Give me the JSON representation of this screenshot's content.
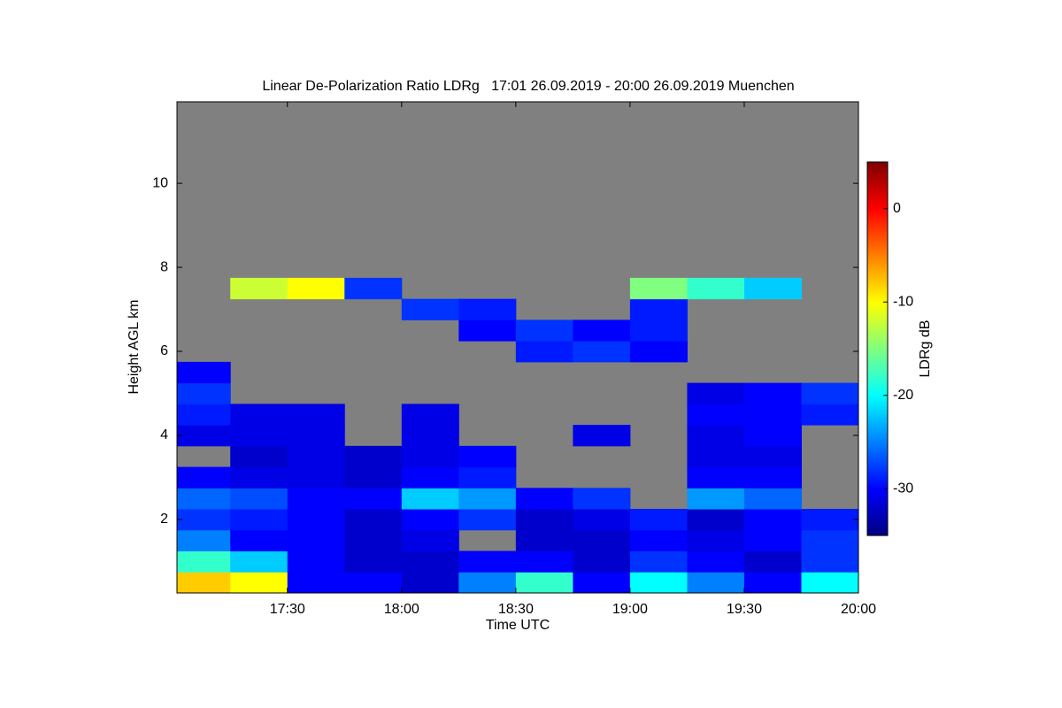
{
  "chart_data": {
    "type": "heatmap",
    "title": "Linear De-Polarization Ratio LDRg   17:01 26.09.2019 - 20:00 26.09.2019 Muenchen",
    "xlabel": "Time UTC",
    "ylabel": "Height AGL km",
    "colorbar_label": "LDRg dB",
    "xlim": [
      17.0167,
      20.0
    ],
    "xticks": [
      {
        "value": 17.5,
        "label": "17:30"
      },
      {
        "value": 18.0,
        "label": "18:00"
      },
      {
        "value": 18.5,
        "label": "18:30"
      },
      {
        "value": 19.0,
        "label": "19:00"
      },
      {
        "value": 19.5,
        "label": "19:30"
      },
      {
        "value": 20.0,
        "label": "20:00"
      }
    ],
    "ylim": [
      0.25,
      11.94
    ],
    "yticks": [
      2,
      4,
      6,
      8,
      10
    ],
    "zlim": [
      -35,
      5
    ],
    "zticks": [
      0,
      -10,
      -20,
      -30
    ],
    "colormap": "jet",
    "background": "#808080",
    "x_edges": [
      17.0167,
      17.25,
      17.5,
      17.75,
      18.0,
      18.25,
      18.5,
      18.75,
      19.0,
      19.25,
      19.5,
      19.75,
      20.0
    ],
    "y_edges": [
      0.25,
      0.75,
      1.25,
      1.75,
      2.25,
      2.75,
      3.25,
      3.75,
      4.25,
      4.75,
      5.25,
      5.75,
      6.25,
      6.75,
      7.25,
      7.75
    ],
    "z": [
      [
        -8,
        -10,
        -30,
        -30,
        -32,
        -25,
        -18,
        -30,
        -20,
        -25,
        -30,
        -20
      ],
      [
        -18,
        -22,
        -30,
        -32,
        -32,
        -30,
        -30,
        -32,
        -28,
        -30,
        -32,
        -28
      ],
      [
        -25,
        -30,
        -30,
        -32,
        -31,
        null,
        -32,
        -32,
        -30,
        -31,
        -30,
        -28
      ],
      [
        -28,
        -29,
        -30,
        -32,
        -30,
        -28,
        -32,
        -31,
        -29,
        -32,
        -30,
        -29
      ],
      [
        -26,
        -27,
        -30,
        -30,
        -22,
        -24,
        -30,
        -28,
        null,
        -24,
        -26,
        null
      ],
      [
        -30,
        -31,
        -31,
        -32,
        -30,
        -29,
        null,
        null,
        null,
        -30,
        -30,
        null
      ],
      [
        null,
        -32,
        -31,
        -32,
        -31,
        -30,
        null,
        null,
        null,
        -31,
        -31,
        null
      ],
      [
        -31,
        -31,
        -31,
        null,
        -31,
        null,
        null,
        -31,
        null,
        -31,
        -30,
        null
      ],
      [
        -29,
        -31,
        -31,
        null,
        -31,
        null,
        null,
        null,
        null,
        -30,
        -30,
        -29
      ],
      [
        -28,
        null,
        null,
        null,
        null,
        null,
        null,
        null,
        null,
        -31,
        -30,
        -28
      ],
      [
        -30,
        null,
        null,
        null,
        null,
        null,
        null,
        null,
        null,
        null,
        null,
        null
      ],
      [
        null,
        null,
        null,
        null,
        null,
        null,
        -29,
        -28,
        -30,
        null,
        null,
        null
      ],
      [
        null,
        null,
        null,
        null,
        null,
        -30,
        -28,
        -30,
        -29,
        null,
        null,
        null
      ],
      [
        null,
        null,
        null,
        null,
        -28,
        -29,
        null,
        null,
        -29,
        null,
        null,
        null
      ],
      [
        null,
        -12,
        -10,
        -28,
        null,
        null,
        null,
        null,
        -15,
        -18,
        -22,
        null
      ]
    ]
  }
}
